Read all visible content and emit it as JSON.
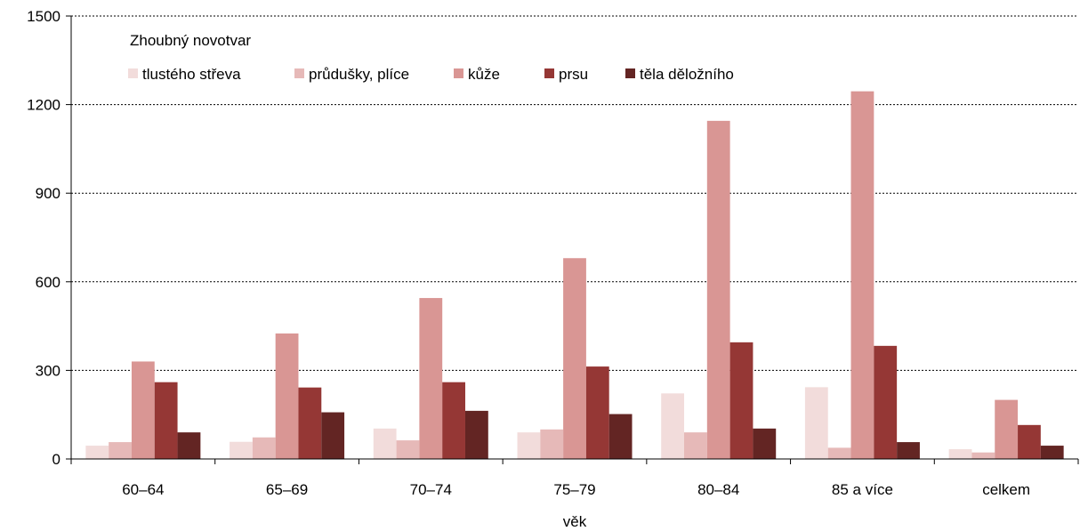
{
  "chart_data": {
    "type": "bar",
    "title": "",
    "legend_title": "Zhoubný novotvar",
    "legend_position": "top-left",
    "xlabel": "věk",
    "ylabel": "",
    "ylim": [
      0,
      1500
    ],
    "yticks": [
      "0",
      "300",
      "600",
      "900",
      "1200",
      "1500"
    ],
    "grid": "horizontal dotted",
    "categories": [
      "60–64",
      "65–69",
      "70–74",
      "75–79",
      "80–84",
      "85 a více",
      "celkem"
    ],
    "series": [
      {
        "name": "tlustého střeva",
        "color": "#f2dcdb",
        "values": [
          45,
          58,
          103,
          90,
          222,
          243,
          33
        ]
      },
      {
        "name": "průdušky, plíce",
        "color": "#e6b9b8",
        "values": [
          57,
          73,
          63,
          100,
          90,
          38,
          22
        ]
      },
      {
        "name": "kůže",
        "color": "#d99694",
        "values": [
          330,
          425,
          545,
          680,
          1145,
          1245,
          200
        ]
      },
      {
        "name": "prsu",
        "color": "#953735",
        "values": [
          260,
          242,
          260,
          313,
          395,
          383,
          115
        ]
      },
      {
        "name": "těla děložního",
        "color": "#632523",
        "values": [
          90,
          158,
          163,
          152,
          103,
          57,
          45
        ]
      }
    ]
  }
}
